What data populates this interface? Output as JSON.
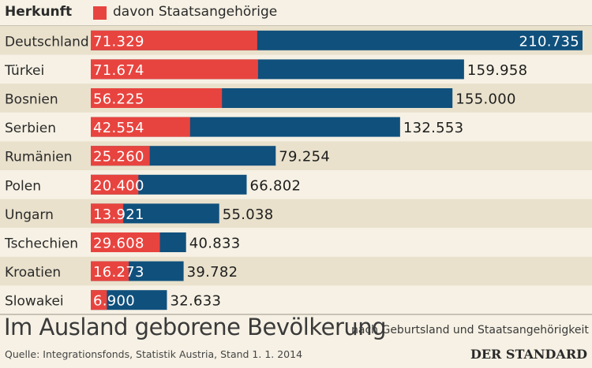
{
  "legend": {
    "header": "Herkunft",
    "series_label": "davon Staatsangehörige",
    "swatch_color": "#e8443f"
  },
  "chart_data": {
    "type": "bar",
    "orientation": "horizontal",
    "stacked": "overlay",
    "title": "Im Ausland geborene Bevölkerung",
    "subtitle": "nach Geburtsland und Staatsangehörigkeit",
    "categories": [
      "Deutschland",
      "Türkei",
      "Bosnien",
      "Serbien",
      "Rumänien",
      "Polen",
      "Ungarn",
      "Tschechien",
      "Kroatien",
      "Slowakei"
    ],
    "series": [
      {
        "name": "Im Ausland geboren",
        "color": "#10507c",
        "values": [
          210735,
          159958,
          155000,
          132553,
          79254,
          66802,
          55038,
          40833,
          39782,
          32633
        ],
        "labels": [
          "210.735",
          "159.958",
          "155.000",
          "132.553",
          "79.254",
          "66.802",
          "55.038",
          "40.833",
          "39.782",
          "32.633"
        ]
      },
      {
        "name": "davon Staatsangehörige",
        "color": "#e8443f",
        "values": [
          71329,
          71674,
          56225,
          42554,
          25260,
          20400,
          13921,
          29608,
          16273,
          6900
        ],
        "labels": [
          "71.329",
          "71.674",
          "56.225",
          "42.554",
          "25.260",
          "20.400",
          "13.921",
          "29.608",
          "16.273",
          "6.900"
        ]
      }
    ],
    "xlim": [
      0,
      210735
    ],
    "grid": false
  },
  "footer": {
    "source": "Quelle: Integrationsfonds, Statistik Austria, Stand 1. 1. 2014",
    "brand": "DER STANDARD"
  }
}
